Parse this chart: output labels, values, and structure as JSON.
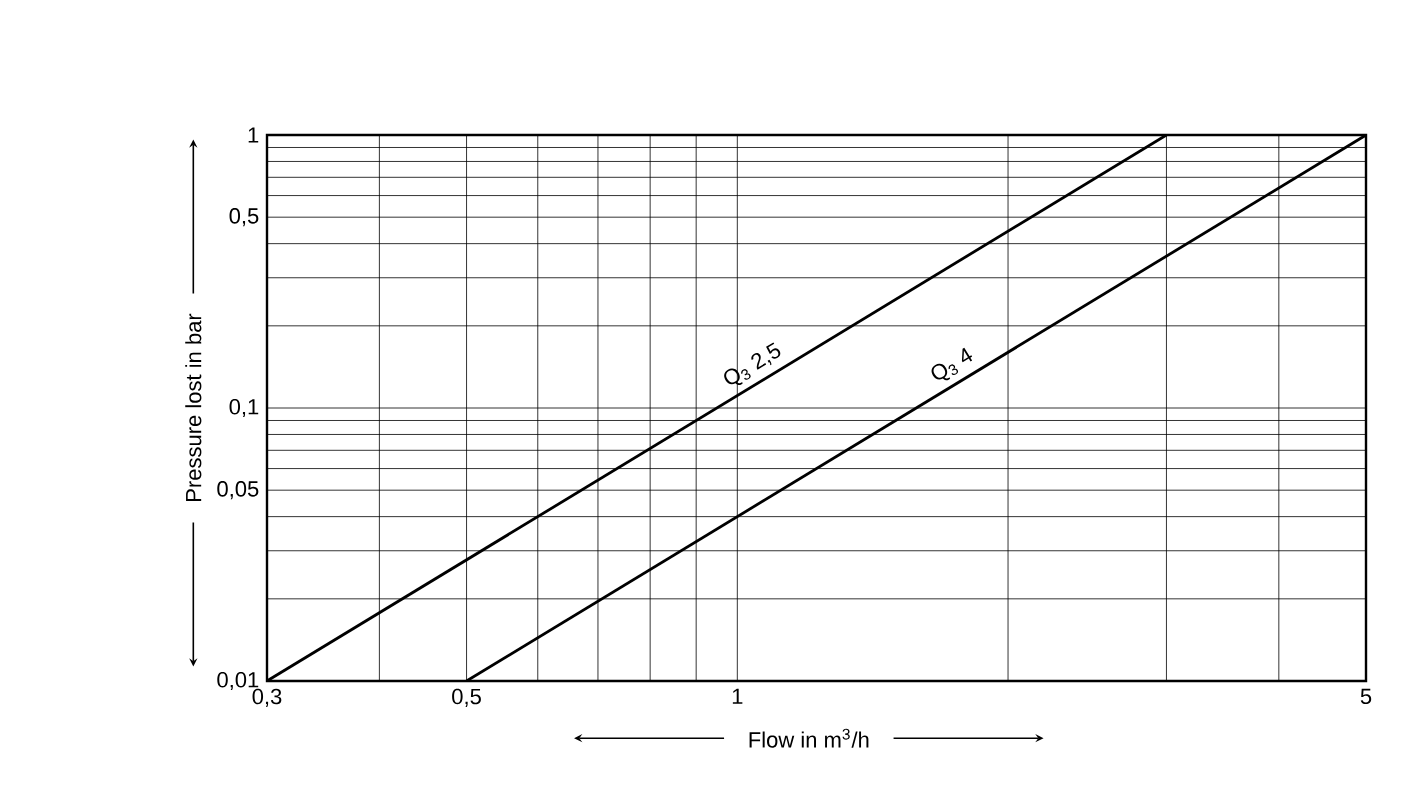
{
  "chart_data": {
    "type": "line",
    "xlabel": "Flow in m$^{3}$/h",
    "ylabel": "Pressure lost in bar",
    "log": "xy",
    "grid": true,
    "marker": "none",
    "line_style": "solid",
    "xlim": [
      0.3,
      5
    ],
    "ylim": [
      0.01,
      1
    ],
    "xticks": [
      {
        "value": 0.3,
        "label": "0,3"
      },
      {
        "value": 0.4,
        "label": null
      },
      {
        "value": 0.5,
        "label": "0,5"
      },
      {
        "value": 0.6,
        "label": null
      },
      {
        "value": 0.7,
        "label": null
      },
      {
        "value": 0.8,
        "label": null
      },
      {
        "value": 0.9,
        "label": null
      },
      1,
      {
        "value": 2,
        "label": null
      },
      {
        "value": 3,
        "label": null
      },
      {
        "value": 4,
        "label": null
      },
      5
    ],
    "yticks": [
      {
        "value": 0.01,
        "label": "0,01"
      },
      {
        "value": 0.02,
        "label": null
      },
      {
        "value": 0.03,
        "label": null
      },
      {
        "value": 0.04,
        "label": null
      },
      {
        "value": 0.05,
        "label": "0,05"
      },
      {
        "value": 0.06,
        "label": null
      },
      {
        "value": 0.07,
        "label": null
      },
      {
        "value": 0.08,
        "label": null
      },
      {
        "value": 0.09,
        "label": null
      },
      {
        "value": 0.1,
        "label": "0,1"
      },
      {
        "value": 0.2,
        "label": null
      },
      {
        "value": 0.3,
        "label": null
      },
      {
        "value": 0.4,
        "label": null
      },
      {
        "value": 0.5,
        "label": "0,5"
      },
      {
        "value": 0.6,
        "label": null
      },
      {
        "value": 0.7,
        "label": null
      },
      {
        "value": 0.8,
        "label": null
      },
      {
        "value": 0.9,
        "label": null
      },
      1
    ],
    "series": [
      {
        "name": "Q$_{3}$ 2,5",
        "color": "#000000",
        "x": [
          0.3,
          3
        ],
        "values": [
          0.01,
          1
        ]
      },
      {
        "name": "Q$_{3}$ 4",
        "color": "#000000",
        "x": [
          0.5,
          5
        ],
        "values": [
          0.01,
          1
        ]
      }
    ]
  }
}
